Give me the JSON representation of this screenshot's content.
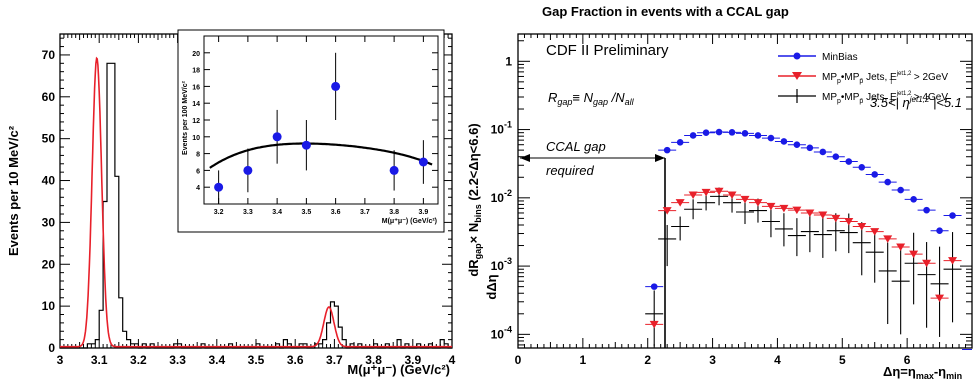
{
  "colors": {
    "red": "#e8202a",
    "blue": "#1a1ae6",
    "black": "#000000"
  },
  "chart_data": [
    {
      "type": "histogram",
      "title": "",
      "xlabel": "M(μ⁺μ⁻) (GeV/c²)",
      "ylabel": "Events per 10 MeV/c²",
      "xlim": [
        3,
        4
      ],
      "ylim": [
        0,
        75
      ],
      "xticks": [
        "3",
        "3.1",
        "3.2",
        "3.3",
        "3.4",
        "3.5",
        "3.6",
        "3.7",
        "3.8",
        "3.9",
        "4"
      ],
      "yticks": [
        "0",
        "10",
        "20",
        "30",
        "40",
        "50",
        "60",
        "70"
      ],
      "series": [
        {
          "kind": "histogram",
          "bin_width": 0.01,
          "x_start": 3.0,
          "values": [
            0,
            0,
            0,
            0,
            0,
            0,
            0,
            1,
            1,
            2,
            9,
            35,
            68,
            68,
            41,
            12,
            4,
            2,
            1,
            1,
            0,
            1,
            0,
            1,
            0,
            0,
            0,
            0,
            0,
            1,
            1,
            0,
            0,
            0,
            0,
            0,
            1,
            0,
            0,
            0,
            0,
            0,
            0,
            1,
            0,
            0,
            0,
            0,
            0,
            0,
            1,
            0,
            0,
            0,
            0,
            1,
            0,
            2,
            1,
            0,
            0,
            1,
            1,
            0,
            0,
            1,
            1,
            2,
            6,
            11,
            10,
            5,
            2,
            0,
            1,
            0,
            1,
            0,
            0,
            0,
            1,
            0,
            0,
            1,
            0,
            0,
            2,
            0,
            1,
            0,
            0,
            1,
            0,
            0,
            1,
            0,
            0,
            2,
            1,
            0
          ]
        },
        {
          "kind": "fit-curve",
          "model": "two gaussians + flat background",
          "peaks": [
            {
              "mean": 3.094,
              "sigma": 0.012,
              "amplitude": 69
            },
            {
              "mean": 3.686,
              "sigma": 0.013,
              "amplitude": 9.5
            }
          ],
          "background": 0.3
        }
      ],
      "inset": {
        "xlabel": "M(μ⁺μ⁻) (GeV/c²)",
        "ylabel": "Events per 100 MeV/c²",
        "xlim": [
          3.15,
          3.95
        ],
        "ylim": [
          2,
          22
        ],
        "xticks": [
          "3.2",
          "3.3",
          "3.4",
          "3.5",
          "3.6",
          "3.7",
          "3.8",
          "3.9"
        ],
        "yticks": [
          "4",
          "6",
          "8",
          "10",
          "12",
          "14",
          "16",
          "18",
          "20"
        ],
        "points": [
          {
            "x": 3.2,
            "y": 4,
            "err": 2
          },
          {
            "x": 3.3,
            "y": 6,
            "err": 2.6
          },
          {
            "x": 3.4,
            "y": 10,
            "err": 3.2
          },
          {
            "x": 3.5,
            "y": 9,
            "err": 3
          },
          {
            "x": 3.6,
            "y": 16,
            "err": 4
          },
          {
            "x": 3.8,
            "y": 6,
            "err": 2.4
          },
          {
            "x": 3.9,
            "y": 7,
            "err": 2.6
          }
        ],
        "fit": {
          "kind": "quadratic",
          "x": [
            3.17,
            3.3,
            3.5,
            3.7,
            3.93
          ],
          "y": [
            6.3,
            8.4,
            9.2,
            8.7,
            6.7
          ]
        }
      }
    },
    {
      "type": "scatter",
      "title": "Gap Fraction in events with a CCAL gap",
      "xlabel": "Δη=η",
      "xlabel_sub": "max",
      "xlabel_mid": "-η",
      "xlabel_sub2": "min",
      "ylabel_main": "dR",
      "ylabel_gap": "gap",
      "ylabel_den": "dΔη",
      "ylabel_times": "× N",
      "ylabel_bins": "bins",
      "ylabel_range": " (2.2<Δη<6.6)",
      "xlim": [
        0,
        7
      ],
      "ylim_log": [
        -4.2,
        0.4
      ],
      "log_y": true,
      "xticks": [
        "0",
        "1",
        "2",
        "3",
        "4",
        "5",
        "6",
        "7"
      ],
      "ytick_mant": [
        "1",
        "10",
        "10",
        "10",
        "10"
      ],
      "ytick_exp": [
        "",
        "-1",
        "-2",
        "-3",
        "-4"
      ],
      "header": "CDF II Preliminary",
      "annotations": {
        "rgap_R": "R",
        "rgap_gap": "gap",
        "rgap_eq": "≡ N",
        "rgap_gap2": "gap",
        "rgap_slash": " /N",
        "rgap_all": "all",
        "eta_range": "3.5<| η",
        "eta_sup": "jet1,2",
        "eta_rest": " |<5.1",
        "ccal1": "CCAL gap",
        "ccal2": "required"
      },
      "legend": [
        {
          "label": "MinBias",
          "color": "#1a1ae6",
          "marker": "circle"
        },
        {
          "label_pre": "MP",
          "sub_p": "p",
          "dot": "•MP",
          "sub_pbar": "p̄",
          "label_mid": " Jets, E",
          "sup": "jet1,2",
          "sub_T": "T",
          "label_post": " > 2GeV",
          "color": "#e8202a",
          "marker": "triangle-down"
        },
        {
          "label_pre": "MP",
          "sub_p": "p",
          "dot": "•MP",
          "sub_pbar": "p̄",
          "label_mid": " Jets, E",
          "sup": "jet1,2",
          "sub_T": "T",
          "label_post": " > 4GeV",
          "color": "#000000",
          "marker": "cross"
        }
      ],
      "series": [
        {
          "name": "MinBias",
          "x": [
            2.1,
            2.3,
            2.5,
            2.7,
            2.9,
            3.1,
            3.3,
            3.5,
            3.7,
            3.9,
            4.1,
            4.3,
            4.5,
            4.7,
            4.9,
            5.1,
            5.3,
            5.5,
            5.7,
            5.9,
            6.1,
            6.3,
            6.5,
            6.7
          ],
          "y": [
            0.0005,
            0.05,
            0.065,
            0.082,
            0.09,
            0.092,
            0.091,
            0.088,
            0.082,
            0.075,
            0.067,
            0.06,
            0.054,
            0.047,
            0.04,
            0.034,
            0.028,
            0.022,
            0.017,
            0.013,
            0.0095,
            0.0066,
            0.0033,
            0.0055
          ]
        },
        {
          "name": "Jets ET > 2GeV",
          "x": [
            2.1,
            2.3,
            2.5,
            2.7,
            2.9,
            3.1,
            3.3,
            3.5,
            3.7,
            3.9,
            4.1,
            4.3,
            4.5,
            4.7,
            4.9,
            5.1,
            5.3,
            5.5,
            5.7,
            5.9,
            6.1,
            6.3,
            6.5,
            6.7
          ],
          "y": [
            0.00014,
            0.0065,
            0.0085,
            0.011,
            0.012,
            0.0125,
            0.011,
            0.0095,
            0.0085,
            0.0075,
            0.007,
            0.0066,
            0.006,
            0.0056,
            0.005,
            0.0045,
            0.0038,
            0.0032,
            0.0025,
            0.0019,
            0.0015,
            0.0011,
            0.00034,
            0.0012
          ]
        },
        {
          "name": "Jets ET > 4GeV",
          "x": [
            2.1,
            2.3,
            2.5,
            2.7,
            2.9,
            3.1,
            3.3,
            3.5,
            3.7,
            3.9,
            4.1,
            4.3,
            4.5,
            4.7,
            4.9,
            5.1,
            5.3,
            5.5,
            5.7,
            5.9,
            6.1,
            6.3,
            6.5,
            6.7
          ],
          "y": [
            0.0002,
            0.0025,
            0.0038,
            0.0068,
            0.0085,
            0.0105,
            0.0085,
            0.0062,
            0.0065,
            0.0045,
            0.0035,
            0.0028,
            0.0032,
            0.0029,
            0.0033,
            0.0031,
            0.0022,
            0.0016,
            0.00085,
            0.0006,
            0.0011,
            0.00075,
            0.00055,
            0.0009
          ],
          "err_up": [
            2.2,
            1.6,
            1.4,
            1.4,
            1.3,
            1.35,
            1.4,
            1.5,
            1.5,
            1.6,
            1.7,
            1.8,
            1.8,
            1.8,
            1.8,
            1.9,
            2.0,
            2.2,
            2.6,
            3.0,
            2.8,
            3.0,
            3.5,
            3.5
          ],
          "err_down": [
            3.0,
            2.5,
            1.6,
            1.4,
            1.3,
            1.35,
            1.4,
            1.5,
            1.5,
            1.7,
            1.8,
            2.0,
            2.0,
            2.2,
            2.0,
            2.0,
            3.0,
            2.8,
            6.0,
            6.0,
            4.0,
            6.0,
            6.0,
            6.0
          ]
        }
      ]
    }
  ]
}
